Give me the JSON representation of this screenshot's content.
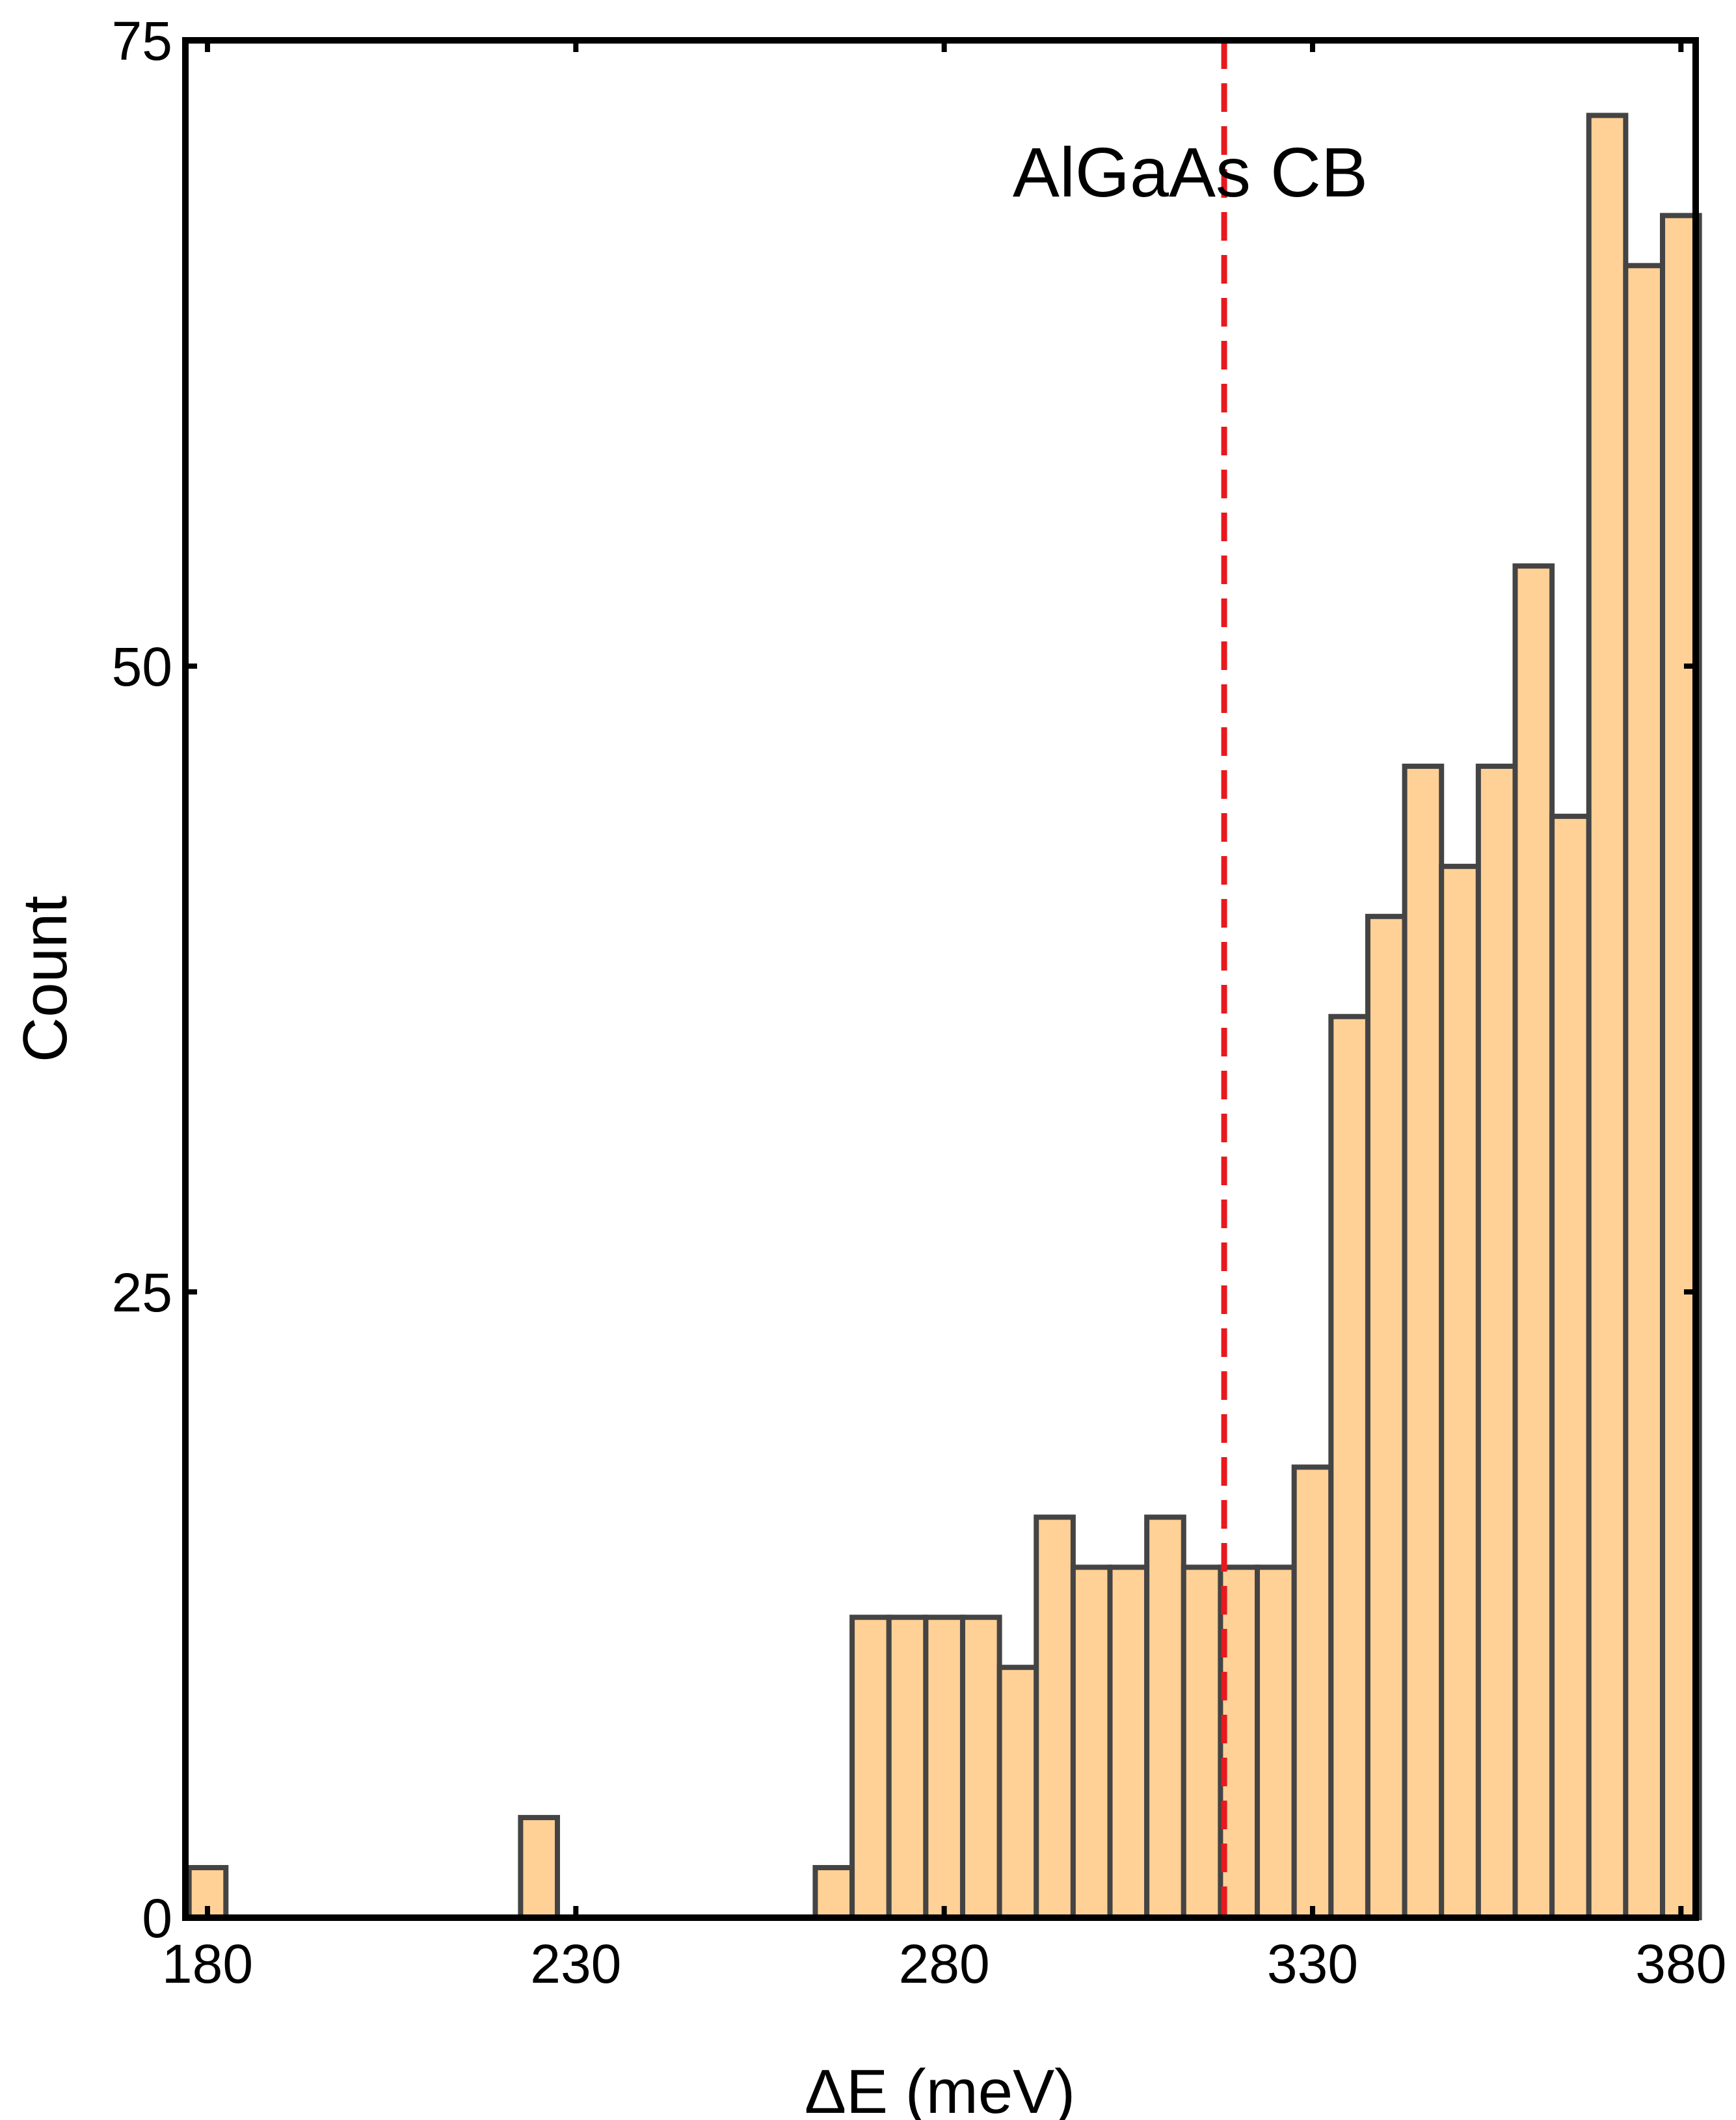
{
  "chart_data": {
    "type": "bar",
    "xlabel": "ΔE (meV)",
    "ylabel": "Count",
    "xlim": [
      177,
      382
    ],
    "ylim": [
      0,
      75
    ],
    "xticks": [
      180,
      230,
      280,
      330,
      380
    ],
    "xtick_labels": [
      "180",
      "230",
      "280",
      "330",
      "380"
    ],
    "yticks": [
      0,
      25,
      50,
      75
    ],
    "ytick_labels": [
      "0",
      "25",
      "50",
      "75"
    ],
    "bin_width": 5,
    "bins": [
      {
        "x": 180,
        "count": 2
      },
      {
        "x": 225,
        "count": 4
      },
      {
        "x": 265,
        "count": 2
      },
      {
        "x": 270,
        "count": 12
      },
      {
        "x": 275,
        "count": 12
      },
      {
        "x": 280,
        "count": 12
      },
      {
        "x": 285,
        "count": 12
      },
      {
        "x": 290,
        "count": 10
      },
      {
        "x": 295,
        "count": 16
      },
      {
        "x": 300,
        "count": 14
      },
      {
        "x": 305,
        "count": 14
      },
      {
        "x": 310,
        "count": 16
      },
      {
        "x": 315,
        "count": 14
      },
      {
        "x": 320,
        "count": 14
      },
      {
        "x": 325,
        "count": 14
      },
      {
        "x": 330,
        "count": 18
      },
      {
        "x": 335,
        "count": 36
      },
      {
        "x": 340,
        "count": 40
      },
      {
        "x": 345,
        "count": 46
      },
      {
        "x": 350,
        "count": 42
      },
      {
        "x": 355,
        "count": 46
      },
      {
        "x": 360,
        "count": 54
      },
      {
        "x": 365,
        "count": 44
      },
      {
        "x": 370,
        "count": 72
      },
      {
        "x": 375,
        "count": 66
      },
      {
        "x": 380,
        "count": 68
      }
    ],
    "reference_line": {
      "x": 318,
      "label": "AlGaAs CB",
      "color": "#e8191e",
      "style": "dashed"
    },
    "bar_fill": "#ffd196",
    "bar_edge": "#444444",
    "grid": false
  }
}
